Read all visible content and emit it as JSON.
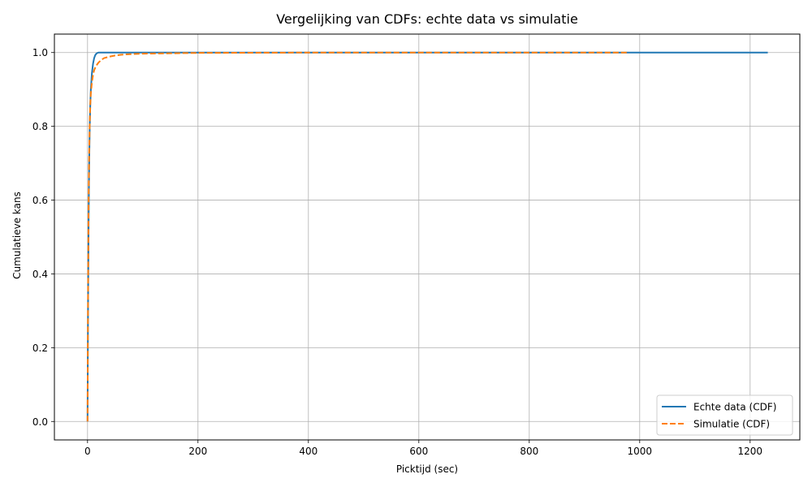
{
  "chart_data": {
    "type": "line",
    "title": "Vergelijking van CDFs: echte data vs simulatie",
    "xlabel": "Picktijd (sec)",
    "ylabel": "Cumulatieve kans",
    "xlim": [
      -60,
      1290
    ],
    "ylim": [
      -0.05,
      1.05
    ],
    "xticks": [
      0,
      200,
      400,
      600,
      800,
      1000,
      1200
    ],
    "yticks": [
      0.0,
      0.2,
      0.4,
      0.6,
      0.8,
      1.0
    ],
    "xtick_labels": [
      "0",
      "200",
      "400",
      "600",
      "800",
      "1000",
      "1200"
    ],
    "ytick_labels": [
      "0.0",
      "0.2",
      "0.4",
      "0.6",
      "0.8",
      "1.0"
    ],
    "grid": true,
    "legend_position": "bottom-right",
    "series": [
      {
        "name": "Echte data (CDF)",
        "color": "#1f77b4",
        "style": "solid",
        "x": [
          0,
          0.5,
          1,
          2,
          3,
          4,
          5,
          6,
          8,
          10,
          12,
          14,
          16,
          18,
          20,
          25,
          30,
          40,
          60,
          100,
          200,
          400,
          600,
          800,
          1000,
          1232
        ],
        "y": [
          0,
          0.18,
          0.33,
          0.55,
          0.7,
          0.8,
          0.86,
          0.9,
          0.945,
          0.97,
          0.985,
          0.993,
          0.997,
          0.999,
          1.0,
          1.0,
          1.0,
          1.0,
          1.0,
          1.0,
          1.0,
          1.0,
          1.0,
          1.0,
          1.0,
          1.0
        ]
      },
      {
        "name": "Simulatie (CDF)",
        "color": "#ff7f0e",
        "style": "dashed",
        "x": [
          0,
          0.5,
          1,
          2,
          3,
          4,
          5,
          6,
          8,
          10,
          12,
          15,
          20,
          25,
          30,
          40,
          50,
          60,
          80,
          100,
          150,
          200,
          400,
          600,
          800,
          977
        ],
        "y": [
          0,
          0.2,
          0.37,
          0.6,
          0.73,
          0.81,
          0.86,
          0.89,
          0.92,
          0.94,
          0.952,
          0.963,
          0.973,
          0.98,
          0.985,
          0.989,
          0.992,
          0.994,
          0.996,
          0.997,
          0.998,
          0.999,
          1.0,
          1.0,
          1.0,
          1.0
        ]
      }
    ]
  }
}
